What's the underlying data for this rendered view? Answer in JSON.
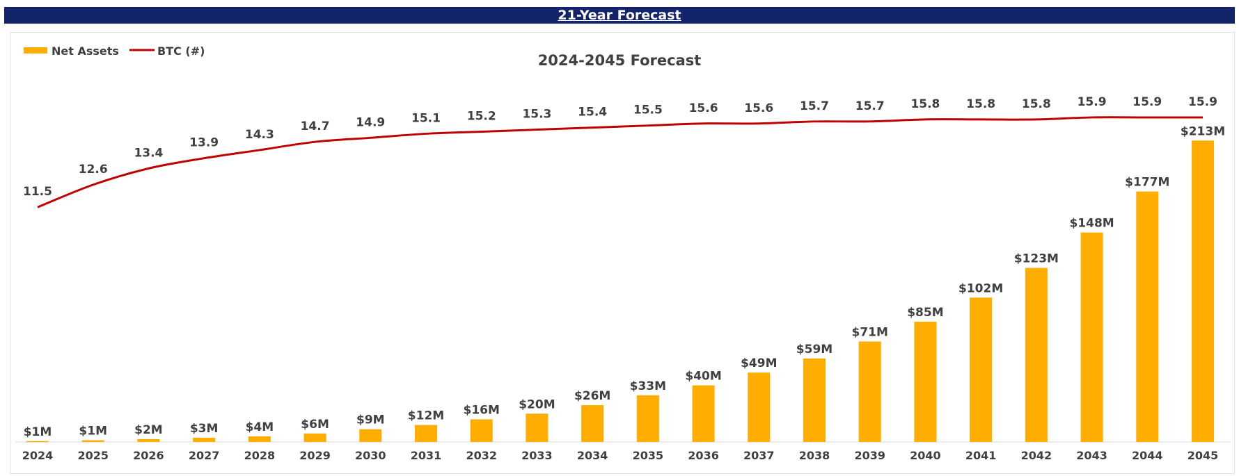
{
  "banner": {
    "title": "21-Year Forecast"
  },
  "chart_data": {
    "type": "bar",
    "title": "2024-2045 Forecast",
    "xlabel": "",
    "ylabel": "",
    "categories": [
      "2024",
      "2025",
      "2026",
      "2027",
      "2028",
      "2029",
      "2030",
      "2031",
      "2032",
      "2033",
      "2034",
      "2035",
      "2036",
      "2037",
      "2038",
      "2039",
      "2040",
      "2041",
      "2042",
      "2043",
      "2044",
      "2045"
    ],
    "legend_position": "top-left",
    "grid": false,
    "series": [
      {
        "name": "Net Assets",
        "kind": "bar",
        "color": "#ffad00",
        "values": [
          0.6,
          1.2,
          2,
          3,
          4,
          6,
          9,
          12,
          16,
          20,
          26,
          33,
          40,
          49,
          59,
          71,
          85,
          102,
          123,
          148,
          177,
          213
        ],
        "labels": [
          "$1M",
          "$1M",
          "$2M",
          "$3M",
          "$4M",
          "$6M",
          "$9M",
          "$12M",
          "$16M",
          "$20M",
          "$26M",
          "$33M",
          "$40M",
          "$49M",
          "$59M",
          "$71M",
          "$85M",
          "$102M",
          "$123M",
          "$148M",
          "$177M",
          "$213M"
        ]
      },
      {
        "name": "BTC (#)",
        "kind": "line",
        "color": "#c00000",
        "values": [
          11.5,
          12.6,
          13.4,
          13.9,
          14.3,
          14.7,
          14.9,
          15.1,
          15.2,
          15.3,
          15.4,
          15.5,
          15.6,
          15.6,
          15.7,
          15.7,
          15.8,
          15.8,
          15.8,
          15.9,
          15.9,
          15.9
        ],
        "labels": [
          "11.5",
          "12.6",
          "13.4",
          "13.9",
          "14.3",
          "14.7",
          "14.9",
          "15.1",
          "15.2",
          "15.3",
          "15.4",
          "15.5",
          "15.6",
          "15.6",
          "15.7",
          "15.7",
          "15.8",
          "15.8",
          "15.8",
          "15.9",
          "15.9",
          "15.9"
        ]
      }
    ]
  }
}
